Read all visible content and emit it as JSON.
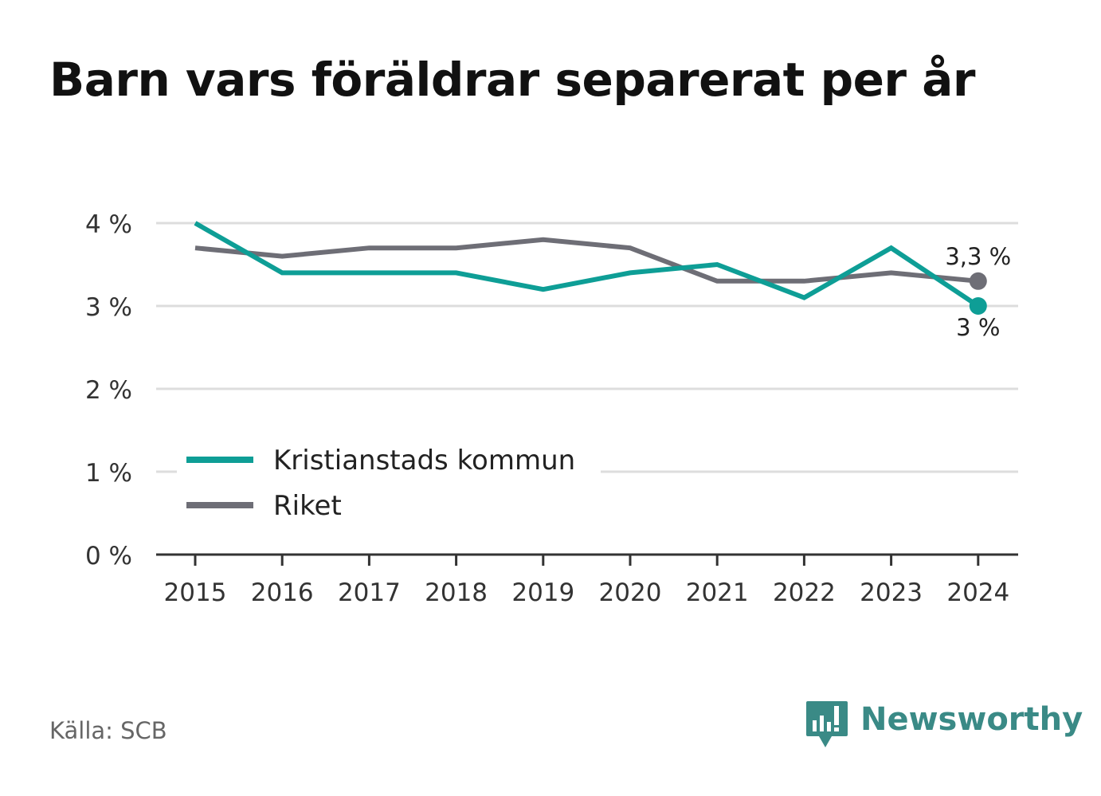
{
  "title": "Barn vars föräldrar separerat per år",
  "source": "Källa: SCB",
  "brand": {
    "name": "Newsworthy",
    "color": "#3a8a86",
    "icon": "bar-chart-speech-bubble-icon"
  },
  "chart_data": {
    "type": "line",
    "title": "",
    "xlabel": "",
    "ylabel": "",
    "categories": [
      "2015",
      "2016",
      "2017",
      "2018",
      "2019",
      "2020",
      "2021",
      "2022",
      "2023",
      "2024"
    ],
    "ylim": [
      0,
      4
    ],
    "yticks": [
      0,
      1,
      2,
      3,
      4
    ],
    "ytick_labels": [
      "0 %",
      "1 %",
      "2 %",
      "3 %",
      "4 %"
    ],
    "grid": true,
    "legend_position": "bottom-left",
    "series": [
      {
        "name": "Kristianstads kommun",
        "color": "#0e9e96",
        "values": [
          4.0,
          3.4,
          3.4,
          3.4,
          3.2,
          3.4,
          3.5,
          3.1,
          3.7,
          3.0
        ],
        "end_label": "3 %"
      },
      {
        "name": "Riket",
        "color": "#6e6e76",
        "values": [
          3.7,
          3.6,
          3.7,
          3.7,
          3.8,
          3.7,
          3.3,
          3.3,
          3.4,
          3.3
        ],
        "end_label": "3,3 %"
      }
    ]
  }
}
